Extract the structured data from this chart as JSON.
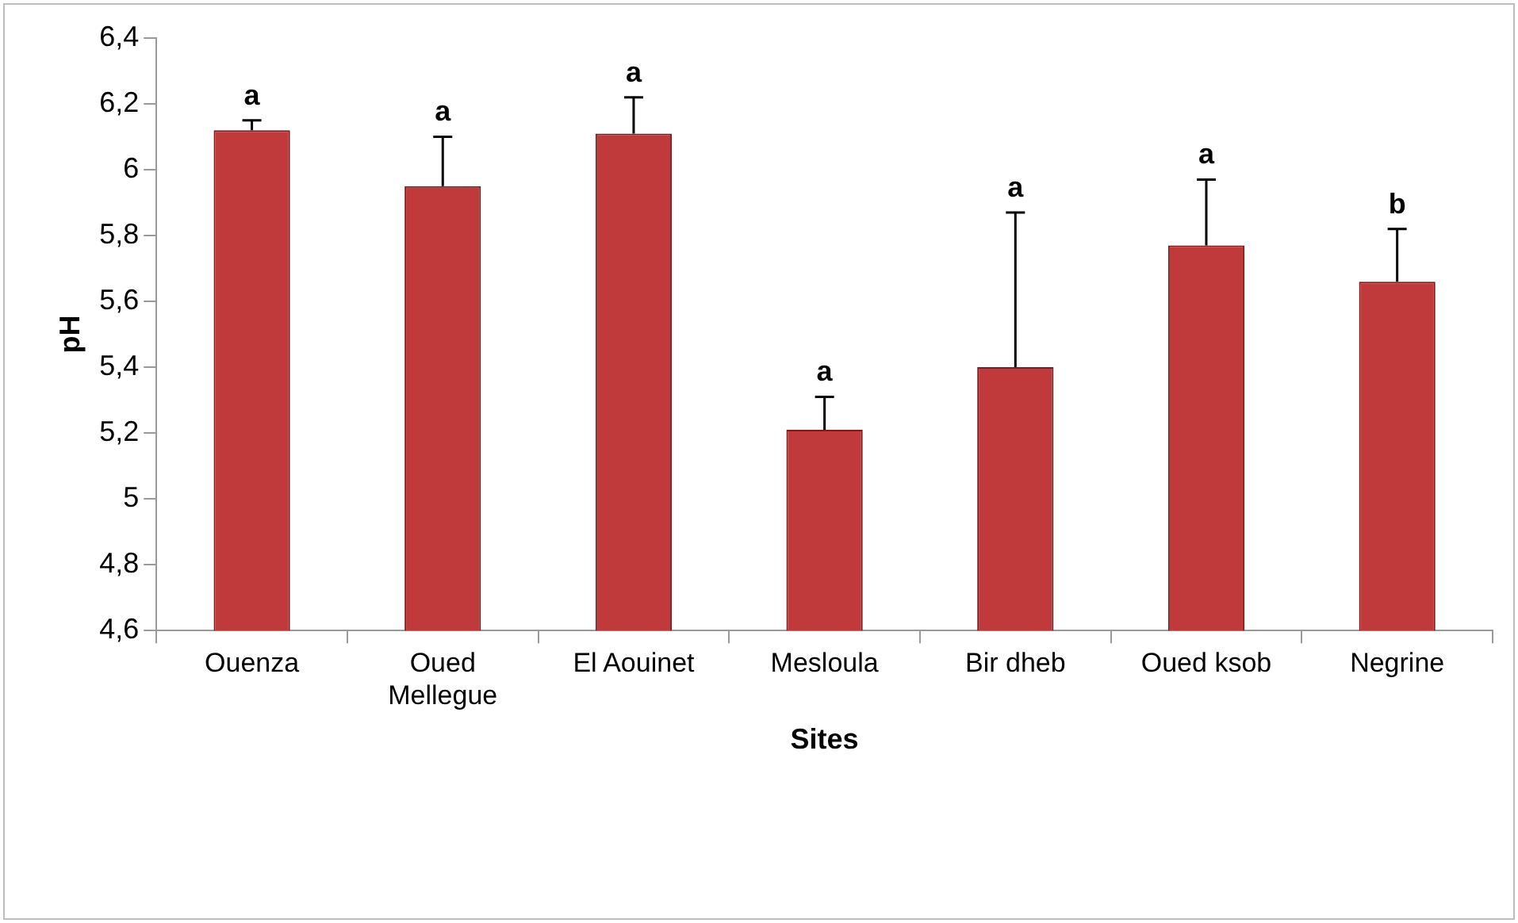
{
  "chart_data": {
    "type": "bar",
    "xlabel": "Sites",
    "ylabel": "pH",
    "categories": [
      "Ouenza",
      "Oued Mellegue",
      "El Aouinet",
      "Mesloula",
      "Bir dheb",
      "Oued ksob",
      "Negrine"
    ],
    "values": [
      6.12,
      5.95,
      6.11,
      5.21,
      5.4,
      5.77,
      5.66
    ],
    "errors": [
      [
        6.12,
        6.15
      ],
      [
        5.95,
        6.1
      ],
      [
        6.11,
        6.22
      ],
      [
        5.21,
        5.31
      ],
      [
        5.4,
        5.87
      ],
      [
        5.77,
        5.97
      ],
      [
        5.66,
        5.82
      ]
    ],
    "color": "#c0393b",
    "ylim": [
      4.6,
      6.4
    ],
    "yticks": [
      {
        "value": 4.6,
        "label": "4,6"
      },
      {
        "value": 4.8,
        "label": "4,8"
      },
      {
        "value": 5,
        "label": "5"
      },
      {
        "value": 5.2,
        "label": "5,2"
      },
      {
        "value": 5.4,
        "label": "5,4"
      },
      {
        "value": 5.6,
        "label": "5,6"
      },
      {
        "value": 5.8,
        "label": "5,8"
      },
      {
        "value": 6,
        "label": "6"
      },
      {
        "value": 6.2,
        "label": "6,2"
      },
      {
        "value": 6.4,
        "label": "6,4"
      }
    ],
    "grid": false,
    "legend": false,
    "annotations": [
      "a",
      "a",
      "a",
      "a",
      "a",
      "a",
      "b"
    ]
  }
}
